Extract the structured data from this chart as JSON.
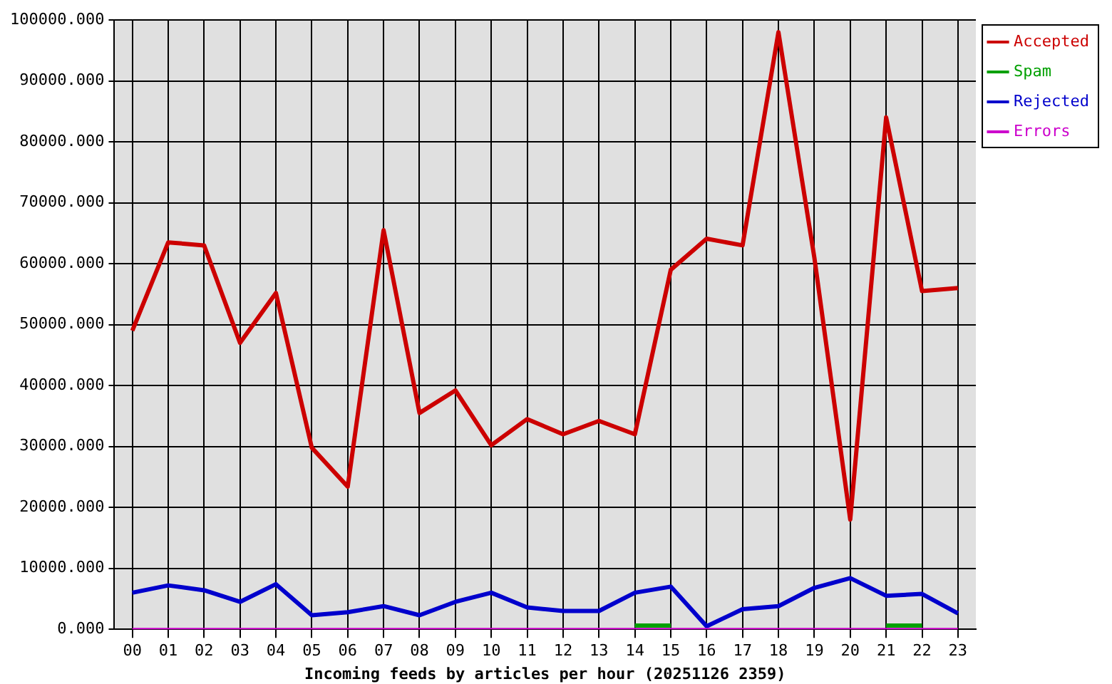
{
  "chart_data": {
    "type": "line",
    "xlabel": "Incoming feeds by articles per hour (20251126 2359)",
    "categories": [
      "00",
      "01",
      "02",
      "03",
      "04",
      "05",
      "06",
      "07",
      "08",
      "09",
      "10",
      "11",
      "12",
      "13",
      "14",
      "15",
      "16",
      "17",
      "18",
      "19",
      "20",
      "21",
      "22",
      "23"
    ],
    "series": [
      {
        "name": "Accepted",
        "color": "#cc0000",
        "values": [
          49000,
          63500,
          63000,
          47000,
          55200,
          29800,
          23400,
          65500,
          35500,
          39200,
          30200,
          34500,
          32000,
          34200,
          32000,
          59000,
          64100,
          63000,
          98000,
          61000,
          18000,
          84000,
          55500,
          56000
        ]
      },
      {
        "name": "Spam",
        "color": "#00a000",
        "values": [
          null,
          null,
          null,
          null,
          null,
          null,
          null,
          null,
          null,
          null,
          null,
          null,
          null,
          null,
          600,
          600,
          null,
          null,
          null,
          null,
          null,
          600,
          600,
          null
        ]
      },
      {
        "name": "Rejected",
        "color": "#0000cc",
        "values": [
          6000,
          7200,
          6400,
          4500,
          7400,
          2300,
          2800,
          3800,
          2300,
          4500,
          6000,
          3600,
          3000,
          3000,
          6000,
          7000,
          500,
          3300,
          3800,
          6800,
          8400,
          5500,
          5800,
          2600
        ]
      },
      {
        "name": "Errors",
        "color": "#cc00cc",
        "values": [
          0,
          0,
          0,
          0,
          0,
          0,
          0,
          0,
          0,
          0,
          0,
          0,
          0,
          0,
          0,
          0,
          0,
          0,
          0,
          0,
          0,
          0,
          0,
          0
        ]
      }
    ],
    "ylim": [
      0,
      100000
    ],
    "yticks": [
      {
        "value": 0,
        "label": "0.000"
      },
      {
        "value": 10000,
        "label": "10000.000"
      },
      {
        "value": 20000,
        "label": "20000.000"
      },
      {
        "value": 30000,
        "label": "30000.000"
      },
      {
        "value": 40000,
        "label": "40000.000"
      },
      {
        "value": 50000,
        "label": "50000.000"
      },
      {
        "value": 60000,
        "label": "60000.000"
      },
      {
        "value": 70000,
        "label": "70000.000"
      },
      {
        "value": 80000,
        "label": "80000.000"
      },
      {
        "value": 90000,
        "label": "90000.000"
      },
      {
        "value": 100000,
        "label": "100000.000"
      }
    ],
    "grid": true,
    "legend": "top right",
    "marker": "none",
    "line_style": "solid"
  }
}
